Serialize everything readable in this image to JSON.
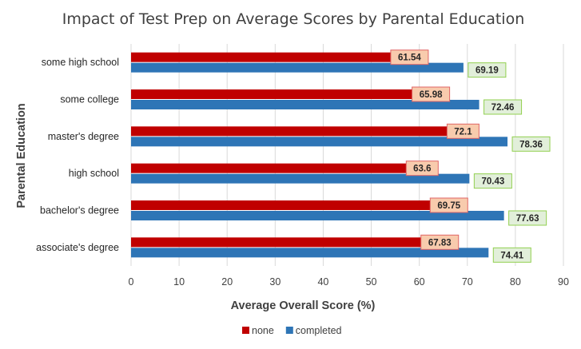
{
  "chart_data": {
    "type": "bar",
    "orientation": "horizontal",
    "title": "Impact of Test Prep on Average Scores by Parental Education",
    "xlabel": "Average Overall Score (%)",
    "ylabel": "Parental Education",
    "xlim": [
      0,
      90
    ],
    "xticks": [
      0,
      10,
      20,
      30,
      40,
      50,
      60,
      70,
      80,
      90
    ],
    "grid": true,
    "legend_position": "bottom",
    "categories": [
      "some high school",
      "some college",
      "master's degree",
      "high school",
      "bachelor's degree",
      "associate's degree"
    ],
    "series": [
      {
        "name": "none",
        "color": "#c00000",
        "label_bg": "#f8cbad",
        "label_border": "#e06666",
        "values": [
          61.54,
          65.98,
          72.1,
          63.6,
          69.75,
          67.83
        ]
      },
      {
        "name": "completed",
        "color": "#2e75b6",
        "label_bg": "#e2efda",
        "label_border": "#92d050",
        "values": [
          69.19,
          72.46,
          78.36,
          70.43,
          77.63,
          74.41
        ]
      }
    ]
  }
}
